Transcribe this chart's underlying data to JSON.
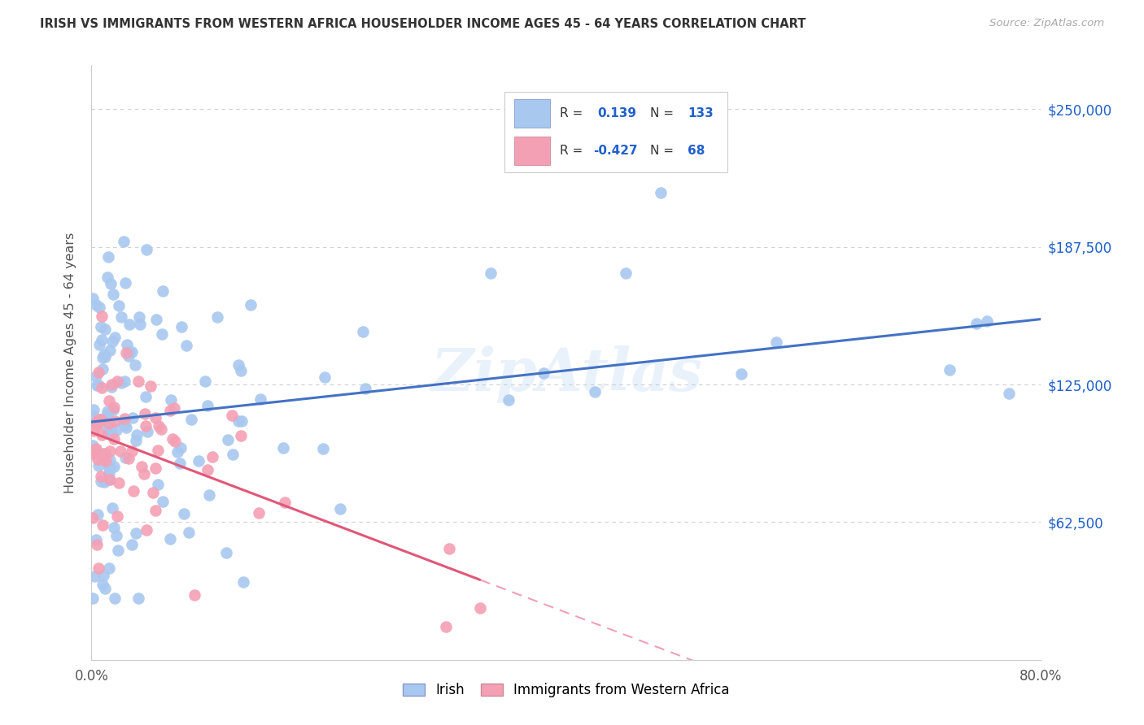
{
  "title": "IRISH VS IMMIGRANTS FROM WESTERN AFRICA HOUSEHOLDER INCOME AGES 45 - 64 YEARS CORRELATION CHART",
  "source": "Source: ZipAtlas.com",
  "ylabel": "Householder Income Ages 45 - 64 years",
  "ytick_labels": [
    "$62,500",
    "$125,000",
    "$187,500",
    "$250,000"
  ],
  "ytick_values": [
    62500,
    125000,
    187500,
    250000
  ],
  "ylim": [
    0,
    270000
  ],
  "xlim": [
    0.0,
    0.8
  ],
  "irish_color": "#a8c8f0",
  "irish_line_color": "#4472c4",
  "western_africa_color": "#f4a0b4",
  "western_africa_line_color": "#e05878",
  "western_africa_line_dashed_color": "#f0a0b4",
  "irish_R": 0.139,
  "irish_N": 133,
  "western_africa_R": -0.427,
  "western_africa_N": 68,
  "watermark": "ZipAtlas",
  "background_color": "#ffffff",
  "grid_color": "#d0d0d0",
  "title_color": "#333333",
  "source_color": "#aaaaaa",
  "label_color": "#555555",
  "tick_value_color": "#2060cc",
  "legend_text_color": "#333333",
  "legend_value_color": "#2060cc"
}
